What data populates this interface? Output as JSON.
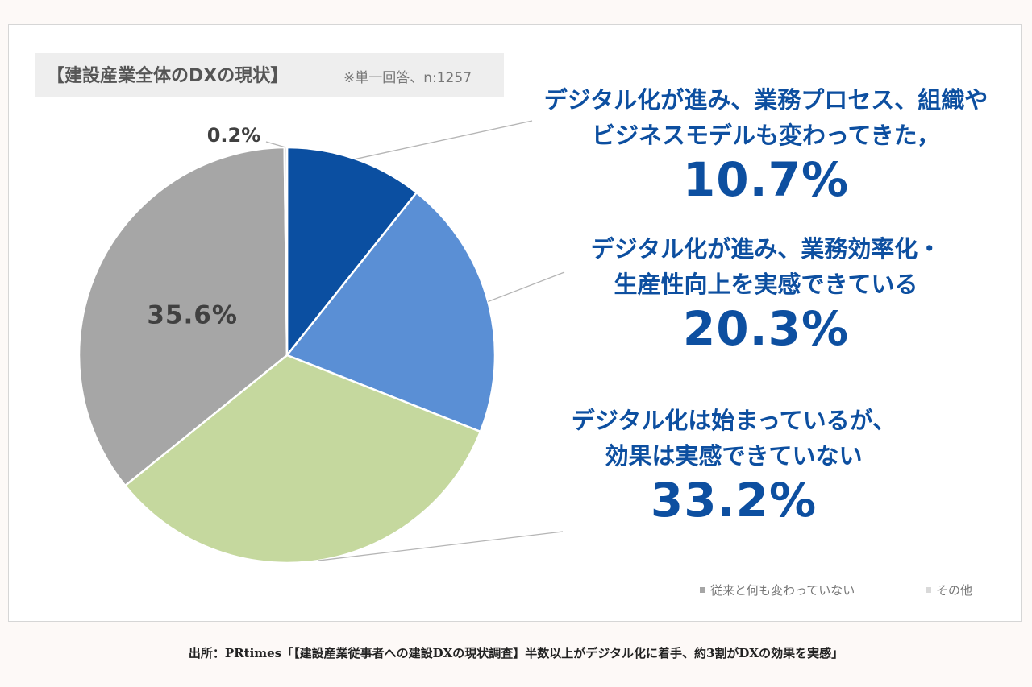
{
  "chart_data": {
    "type": "pie",
    "title": "【建設産業全体のDXの現状】",
    "note": "※単一回答、n:1257",
    "slices": [
      {
        "label_lines": [
          "デジタル化が進み、業務プロセス、組織や",
          "ビジネスモデルも変わってきた，"
        ],
        "value": 10.7,
        "display": "10.7%",
        "color": "#0b4fa1"
      },
      {
        "label_lines": [
          "デジタル化が進み、業務効率化・",
          "生産性向上を実感できている"
        ],
        "value": 20.3,
        "display": "20.3%",
        "color": "#5a8fd5"
      },
      {
        "label_lines": [
          "デジタル化は始まっているが、",
          "効果は実感できていない"
        ],
        "value": 33.2,
        "display": "33.2%",
        "color": "#c5d89e"
      },
      {
        "label": "従来と何も変わっていない",
        "value": 35.6,
        "display": "35.6%",
        "color": "#a6a6a6"
      },
      {
        "label": "その他",
        "value": 0.2,
        "display": "0.2%",
        "color": "#d9d9d9"
      }
    ],
    "start_angle_deg": 0,
    "direction": "clockwise"
  },
  "source": "出所：PRtimes「【建設産業従事者への建設DXの現状調査】半数以上がデジタル化に着手、約3割がDXの効果を実感」",
  "colors": {
    "annotation": "#0d4fa0",
    "inner_label": "#404040"
  }
}
